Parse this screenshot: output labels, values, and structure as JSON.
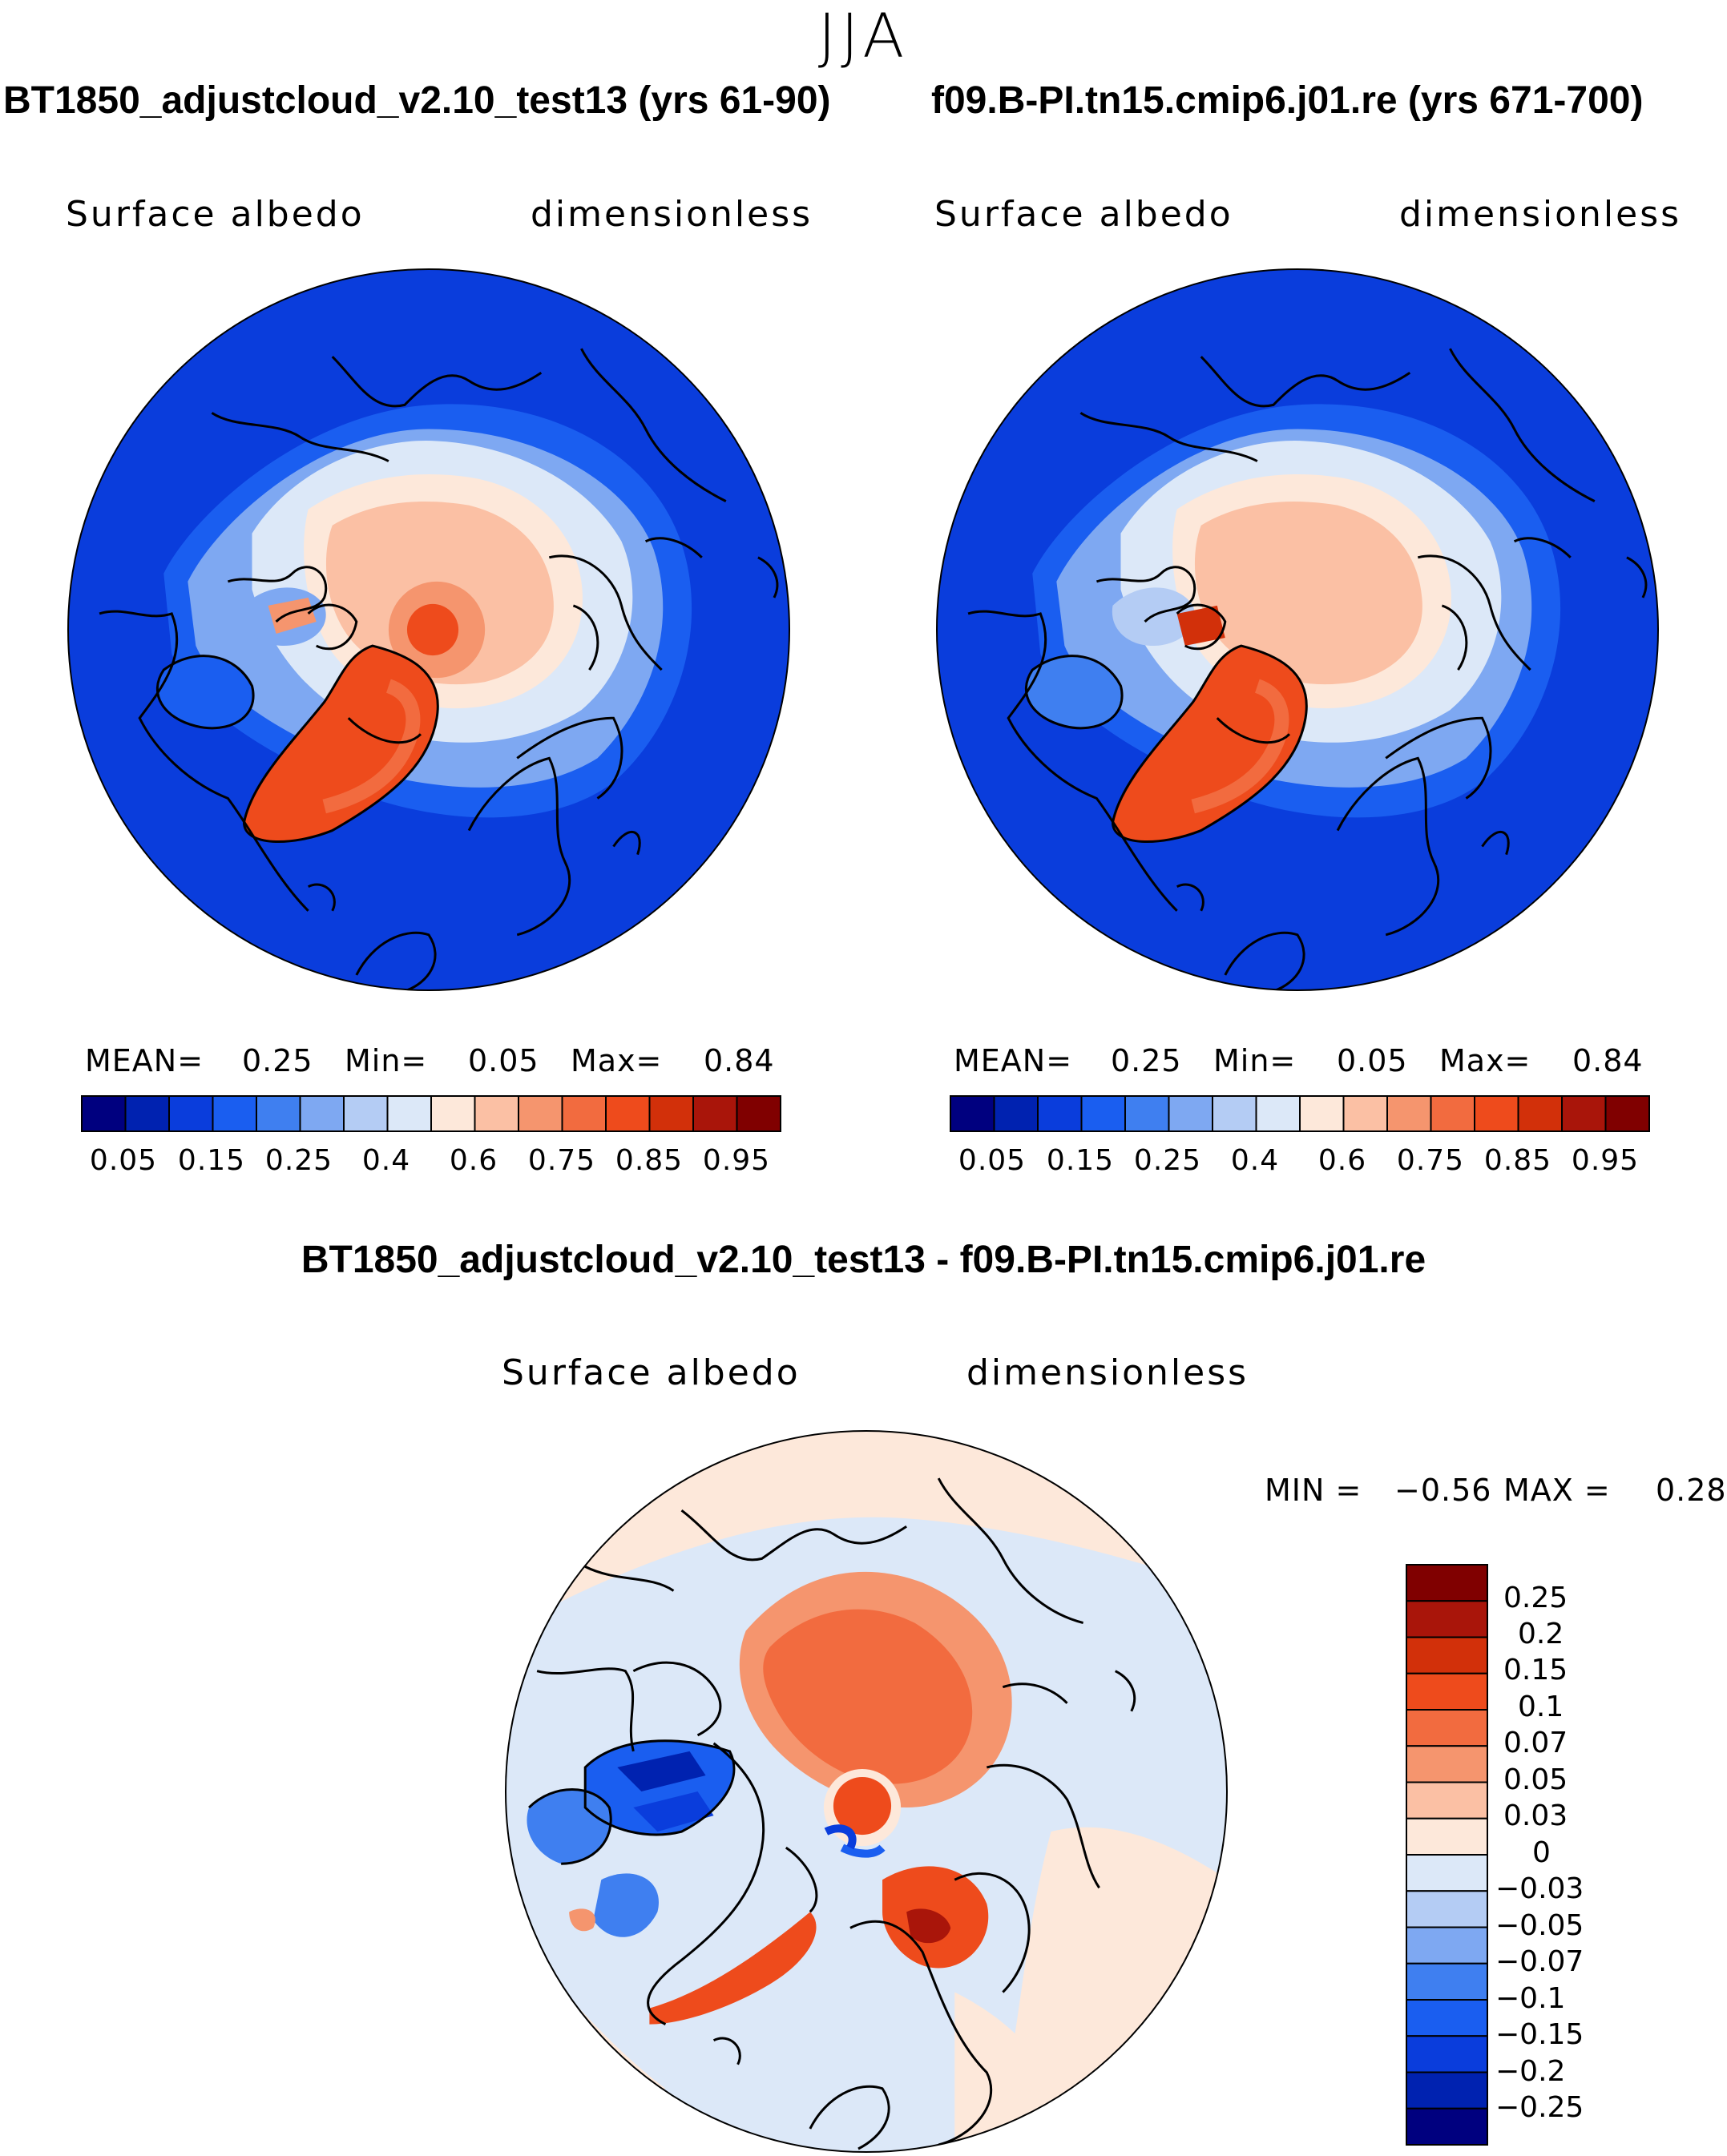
{
  "figure": {
    "season": "JJA",
    "diff_title": "BT1850_adjustcloud_v2.10_test13 - f09.B-PI.tn15.cmip6.j01.re"
  },
  "panels": [
    {
      "run": "BT1850_adjustcloud_v2.10_test13 (yrs 61-90)",
      "variable": "Surface albedo",
      "units": "dimensionless",
      "stats": {
        "mean_label": "MEAN=",
        "mean": "0.25",
        "min_label": "Min=",
        "min": "0.05",
        "max_label": "Max=",
        "max": "0.84"
      }
    },
    {
      "run": "f09.B-PI.tn15.cmip6.j01.re (yrs 671-700)",
      "variable": "Surface albedo",
      "units": "dimensionless",
      "stats": {
        "mean_label": "MEAN=",
        "mean": "0.25",
        "min_label": "Min=",
        "min": "0.05",
        "max_label": "Max=",
        "max": "0.84"
      }
    }
  ],
  "diff_panel": {
    "variable": "Surface albedo",
    "units": "dimensionless",
    "min_label": "MIN =",
    "min": "−0.56",
    "max_label": "MAX =",
    "max": "0.28"
  },
  "colorbar_abs": {
    "colors": [
      "#00007f",
      "#0022b0",
      "#0a3ddc",
      "#1a5ef0",
      "#3f7ff0",
      "#7ea8f2",
      "#b4ccf4",
      "#dce8f8",
      "#fde8da",
      "#fbc0a4",
      "#f5956e",
      "#f26b3f",
      "#ee4b1c",
      "#d2300a",
      "#a9150a",
      "#800000"
    ],
    "tick_labels": [
      "0.05",
      "0.15",
      "0.25",
      "0.4",
      "0.6",
      "0.75",
      "0.85",
      "0.95"
    ]
  },
  "colorbar_diff": {
    "colors": [
      "#800000",
      "#a9150a",
      "#d2300a",
      "#ee4b1c",
      "#f26b3f",
      "#f5956e",
      "#fbc0a4",
      "#fde8da",
      "#dce8f8",
      "#b4ccf4",
      "#7ea8f2",
      "#3f7ff0",
      "#1a5ef0",
      "#0a3ddc",
      "#0022b0",
      "#00007f"
    ],
    "tick_labels": [
      "0.25",
      "0.2",
      "0.15",
      "0.1",
      "0.07",
      "0.05",
      "0.03",
      "0",
      "−0.03",
      "−0.05",
      "−0.07",
      "−0.1",
      "−0.15",
      "−0.2",
      "−0.25"
    ]
  }
}
